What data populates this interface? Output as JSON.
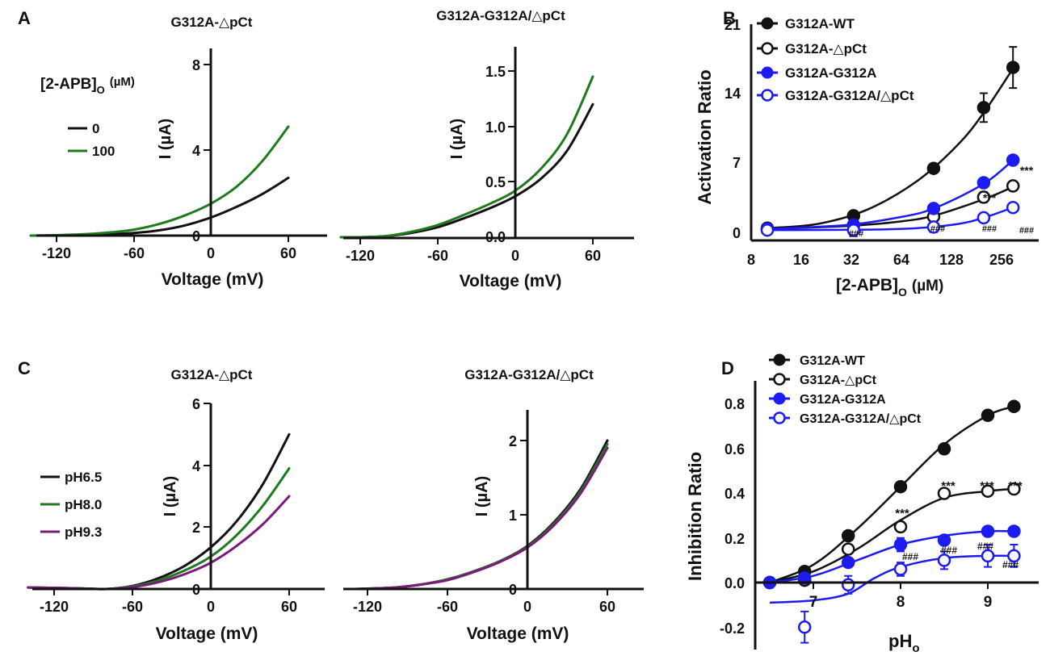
{
  "panels": {
    "A": {
      "letter": "A",
      "left": {
        "title": "G312A-△pCt",
        "xlabel": "Voltage (mV)",
        "ylabel": "I (µA)",
        "xticks": [
          "-120",
          "-60",
          "0",
          "60"
        ],
        "yticks": [
          "0",
          "4",
          "8"
        ],
        "legend_title_main": "[2-APB]",
        "legend_title_sub": "O",
        "legend_title_unit": "(µM)",
        "legend": [
          "0",
          "100"
        ]
      },
      "right": {
        "title": "G312A-G312A/△pCt",
        "xlabel": "Voltage (mV)",
        "ylabel": "I (µA)",
        "xticks": [
          "-120",
          "-60",
          "0",
          "60"
        ],
        "yticks": [
          "0.0",
          "0.5",
          "1.0",
          "1.5"
        ]
      }
    },
    "B": {
      "letter": "B",
      "ylabel": "Activation Ratio",
      "xlabel_main": "[2-APB]",
      "xlabel_sub": "O",
      "xlabel_unit": "(µM)",
      "xticks": [
        "8",
        "16",
        "32",
        "64",
        "128",
        "256"
      ],
      "yticks": [
        "0",
        "7",
        "14",
        "21"
      ],
      "legend": [
        "G312A-WT",
        "G312A-△pCt",
        "G312A-G312A",
        "G312A-G312A/△pCt"
      ],
      "ann_star": "***",
      "ann_hash": "###"
    },
    "C": {
      "letter": "C",
      "left": {
        "title": "G312A-△pCt",
        "xlabel": "Voltage (mV)",
        "ylabel": "I (µA)",
        "xticks": [
          "-120",
          "-60",
          "0",
          "60"
        ],
        "yticks": [
          "0",
          "2",
          "4",
          "6"
        ],
        "legend": [
          "pH6.5",
          "pH8.0",
          "pH9.3"
        ]
      },
      "right": {
        "title": "G312A-G312A/△pCt",
        "xlabel": "Voltage (mV)",
        "ylabel": "I (µA)",
        "xticks": [
          "-120",
          "-60",
          "0",
          "60"
        ],
        "yticks": [
          "0",
          "1",
          "2"
        ]
      }
    },
    "D": {
      "letter": "D",
      "ylabel": "Inhibition Ratio",
      "xlabel_main": "pH",
      "xlabel_sub": "o",
      "xticks": [
        "7",
        "8",
        "9"
      ],
      "yticks": [
        "-0.2",
        "0.0",
        "0.2",
        "0.4",
        "0.6",
        "0.8"
      ],
      "legend": [
        "G312A-WT",
        "G312A-△pCt",
        "G312A-G312A",
        "G312A-G312A/△pCt"
      ],
      "ann_star": "***",
      "ann_hash": "###"
    }
  },
  "colors": {
    "black": "#111111",
    "green": "#1f7a1f",
    "purple": "#7b1a7b",
    "blue": "#1c1cf0"
  },
  "chart_data": [
    {
      "id": "A-left",
      "type": "line",
      "title": "G312A-△pCt",
      "xlabel": "Voltage (mV)",
      "ylabel": "I (µA)",
      "xlim": [
        -140,
        85
      ],
      "ylim": [
        -0.4,
        9.2
      ],
      "series": [
        {
          "name": "0",
          "color": "black",
          "x": [
            -140,
            -120,
            -100,
            -80,
            -60,
            -40,
            -20,
            0,
            20,
            40,
            60
          ],
          "y": [
            0,
            0.01,
            0.03,
            0.06,
            0.12,
            0.25,
            0.48,
            0.85,
            1.35,
            1.95,
            2.7
          ]
        },
        {
          "name": "100",
          "color": "green",
          "x": [
            -140,
            -120,
            -100,
            -80,
            -60,
            -40,
            -20,
            0,
            20,
            40,
            60
          ],
          "y": [
            0,
            0.02,
            0.06,
            0.14,
            0.28,
            0.55,
            0.95,
            1.5,
            2.3,
            3.5,
            5.1
          ]
        }
      ]
    },
    {
      "id": "A-right",
      "type": "line",
      "title": "G312A-G312A/△pCt",
      "xlabel": "Voltage (mV)",
      "ylabel": "I (µA)",
      "xlim": [
        -135,
        95
      ],
      "ylim": [
        -0.03,
        1.72
      ],
      "series": [
        {
          "name": "0",
          "color": "black",
          "x": [
            -135,
            -120,
            -100,
            -80,
            -60,
            -40,
            -20,
            0,
            20,
            40,
            60
          ],
          "y": [
            0,
            0,
            0.01,
            0.04,
            0.09,
            0.17,
            0.26,
            0.37,
            0.53,
            0.78,
            1.2
          ]
        },
        {
          "name": "100",
          "color": "green",
          "x": [
            -135,
            -120,
            -100,
            -80,
            -60,
            -40,
            -20,
            0,
            20,
            40,
            60
          ],
          "y": [
            0,
            0,
            0.01,
            0.05,
            0.11,
            0.2,
            0.3,
            0.42,
            0.62,
            0.93,
            1.45
          ]
        }
      ]
    },
    {
      "id": "B",
      "type": "scatter",
      "xscale": "log2",
      "xlabel": "[2-APB]o (µM)",
      "ylabel": "Activation Ratio",
      "xlim": [
        8,
        350
      ],
      "ylim": [
        0,
        21
      ],
      "series": [
        {
          "name": "G312A-WT",
          "color": "black",
          "filled": true,
          "x": [
            10,
            33,
            100,
            200,
            300
          ],
          "y": [
            1.2,
            2.4,
            7.0,
            12.9,
            16.8
          ],
          "err": [
            0,
            0,
            0,
            1.4,
            2.0
          ],
          "fit": [
            [
              10,
              1.2
            ],
            [
              20,
              1.6
            ],
            [
              40,
              3.0
            ],
            [
              80,
              5.8
            ],
            [
              140,
              9.3
            ],
            [
              200,
              12.4
            ],
            [
              300,
              16.7
            ]
          ]
        },
        {
          "name": "G312A-△pCt",
          "color": "black",
          "filled": false,
          "x": [
            10,
            33,
            100,
            200,
            300
          ],
          "y": [
            1.1,
            1.5,
            2.3,
            4.2,
            5.3
          ],
          "err": [
            0,
            0,
            0,
            0.5,
            0.4
          ],
          "fit": [
            [
              10,
              1.1
            ],
            [
              30,
              1.4
            ],
            [
              60,
              1.8
            ],
            [
              100,
              2.4
            ],
            [
              200,
              4.0
            ],
            [
              300,
              5.2
            ]
          ]
        },
        {
          "name": "G312A-G312A",
          "color": "blue",
          "filled": true,
          "x": [
            10,
            33,
            100,
            200,
            300
          ],
          "y": [
            1.1,
            1.5,
            3.1,
            5.6,
            7.8
          ],
          "err": [
            0,
            0,
            0,
            0,
            0
          ],
          "fit": [
            [
              10,
              1.1
            ],
            [
              30,
              1.5
            ],
            [
              60,
              2.2
            ],
            [
              100,
              3.1
            ],
            [
              200,
              5.5
            ],
            [
              300,
              7.8
            ]
          ]
        },
        {
          "name": "G312A-G312A/△pCt",
          "color": "blue",
          "filled": false,
          "x": [
            10,
            33,
            100,
            200,
            300
          ],
          "y": [
            1.0,
            1.0,
            1.3,
            2.2,
            3.2
          ],
          "err": [
            0,
            0.6,
            0.5,
            0.4,
            0.3
          ],
          "fit": [
            [
              10,
              1.0
            ],
            [
              40,
              1.05
            ],
            [
              80,
              1.2
            ],
            [
              140,
              1.6
            ],
            [
              200,
              2.2
            ],
            [
              300,
              3.2
            ]
          ]
        }
      ]
    },
    {
      "id": "C-left",
      "type": "line",
      "title": "G312A-△pCt",
      "xlabel": "Voltage (mV)",
      "ylabel": "I (µA)",
      "xlim": [
        -140,
        80
      ],
      "ylim": [
        0,
        6
      ],
      "series": [
        {
          "name": "pH6.5",
          "color": "black",
          "x": [
            -140,
            -100,
            -80,
            -60,
            -40,
            -20,
            0,
            20,
            40,
            60
          ],
          "y": [
            0.05,
            0.02,
            0,
            0.1,
            0.35,
            0.75,
            1.35,
            2.2,
            3.4,
            5.0
          ]
        },
        {
          "name": "pH8.0",
          "color": "green",
          "x": [
            -140,
            -100,
            -80,
            -60,
            -40,
            -20,
            0,
            20,
            40,
            60
          ],
          "y": [
            0.05,
            0.02,
            0,
            0.08,
            0.28,
            0.6,
            1.05,
            1.75,
            2.7,
            3.9
          ]
        },
        {
          "name": "pH9.3",
          "color": "purple",
          "x": [
            -140,
            -100,
            -80,
            -60,
            -40,
            -20,
            0,
            20,
            40,
            60
          ],
          "y": [
            0.05,
            0.02,
            0,
            0.06,
            0.22,
            0.48,
            0.85,
            1.4,
            2.1,
            3.0
          ]
        }
      ]
    },
    {
      "id": "C-right",
      "type": "line",
      "title": "G312A-G312A/△pCt",
      "xlabel": "Voltage (mV)",
      "ylabel": "I (µA)",
      "xlim": [
        -130,
        95
      ],
      "ylim": [
        0,
        2.5
      ],
      "series": [
        {
          "name": "pH6.5",
          "color": "black",
          "x": [
            -130,
            -100,
            -80,
            -60,
            -40,
            -20,
            0,
            20,
            40,
            60
          ],
          "y": [
            0,
            0.02,
            0.06,
            0.13,
            0.24,
            0.38,
            0.58,
            0.9,
            1.35,
            2.0
          ]
        },
        {
          "name": "pH8.0",
          "color": "green",
          "x": [
            -130,
            -100,
            -80,
            -60,
            -40,
            -20,
            0,
            20,
            40,
            60
          ],
          "y": [
            0,
            0.02,
            0.06,
            0.13,
            0.24,
            0.38,
            0.57,
            0.88,
            1.32,
            1.95
          ]
        },
        {
          "name": "pH9.3",
          "color": "purple",
          "x": [
            -130,
            -100,
            -80,
            -60,
            -40,
            -20,
            0,
            20,
            40,
            60
          ],
          "y": [
            0,
            0.02,
            0.06,
            0.12,
            0.23,
            0.37,
            0.56,
            0.86,
            1.29,
            1.9
          ]
        }
      ]
    },
    {
      "id": "D",
      "type": "scatter",
      "xlabel": "pHo",
      "ylabel": "Inhibition Ratio",
      "xlim": [
        6.1,
        9.45
      ],
      "ylim": [
        -0.28,
        0.9
      ],
      "series": [
        {
          "name": "G312A-WT",
          "color": "black",
          "filled": true,
          "x": [
            6.5,
            6.9,
            7.4,
            8.0,
            8.5,
            9.0,
            9.3
          ],
          "y": [
            0,
            0.05,
            0.21,
            0.43,
            0.6,
            0.75,
            0.79
          ],
          "err": [
            0,
            0,
            0,
            0,
            0,
            0,
            0
          ],
          "fit": [
            [
              6.5,
              0
            ],
            [
              7.0,
              0.08
            ],
            [
              7.5,
              0.24
            ],
            [
              8.0,
              0.43
            ],
            [
              8.5,
              0.62
            ],
            [
              9.0,
              0.75
            ],
            [
              9.3,
              0.79
            ]
          ]
        },
        {
          "name": "G312A-△pCt",
          "color": "black",
          "filled": false,
          "x": [
            6.5,
            6.9,
            7.4,
            8.0,
            8.5,
            9.0,
            9.3
          ],
          "y": [
            0,
            0.01,
            0.15,
            0.25,
            0.4,
            0.41,
            0.42
          ],
          "err": [
            0,
            0,
            0,
            0,
            0,
            0.02,
            0.02
          ],
          "fit": [
            [
              6.5,
              0
            ],
            [
              7.0,
              0.05
            ],
            [
              7.5,
              0.15
            ],
            [
              8.0,
              0.28
            ],
            [
              8.5,
              0.38
            ],
            [
              9.0,
              0.41
            ],
            [
              9.3,
              0.42
            ]
          ]
        },
        {
          "name": "G312A-G312A",
          "color": "blue",
          "filled": true,
          "x": [
            6.5,
            6.9,
            7.4,
            8.0,
            8.5,
            9.0,
            9.3
          ],
          "y": [
            0,
            0.02,
            0.09,
            0.17,
            0.19,
            0.23,
            0.23
          ],
          "err": [
            0,
            0,
            0,
            0.03,
            0.02,
            0.02,
            0.01
          ],
          "fit": [
            [
              6.5,
              0
            ],
            [
              7.0,
              0.03
            ],
            [
              7.5,
              0.1
            ],
            [
              8.0,
              0.17
            ],
            [
              8.5,
              0.21
            ],
            [
              9.0,
              0.23
            ],
            [
              9.3,
              0.23
            ]
          ]
        },
        {
          "name": "G312A-G312A/△pCt",
          "color": "blue",
          "filled": false,
          "x": [
            6.9,
            7.4,
            8.0,
            8.5,
            9.0,
            9.3
          ],
          "y": [
            -0.2,
            -0.01,
            0.06,
            0.1,
            0.12,
            0.12
          ],
          "err": [
            0.07,
            0.04,
            0.03,
            0.04,
            0.05,
            0.05
          ],
          "fit": [
            [
              6.5,
              -0.09
            ],
            [
              7.0,
              -0.08
            ],
            [
              7.4,
              -0.05
            ],
            [
              7.7,
              0.02
            ],
            [
              8.0,
              0.07
            ],
            [
              8.5,
              0.11
            ],
            [
              9.0,
              0.12
            ],
            [
              9.3,
              0.12
            ]
          ]
        }
      ]
    }
  ]
}
